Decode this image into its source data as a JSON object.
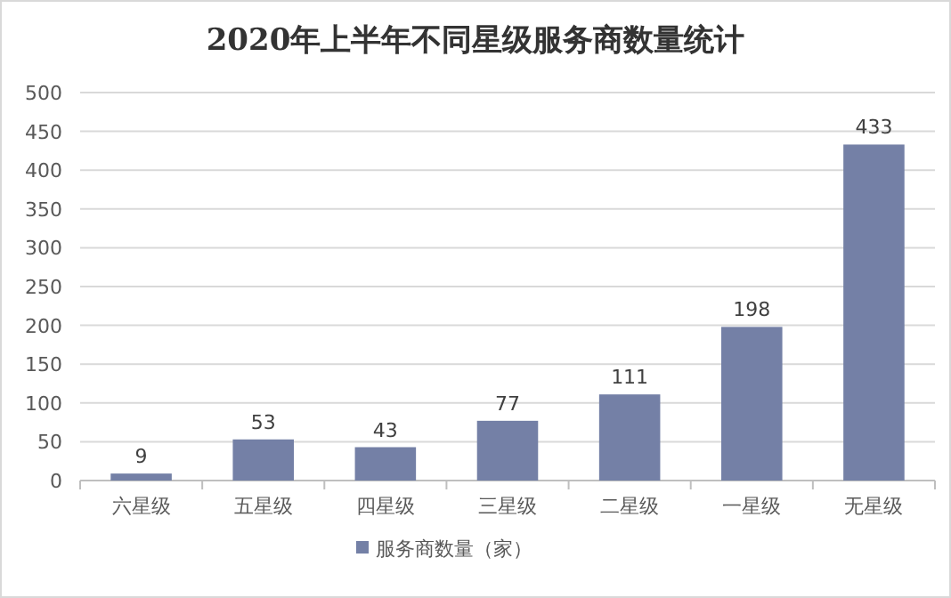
{
  "chart_data": {
    "type": "bar",
    "title": "2020年上半年不同星级服务商数量统计",
    "categories": [
      "六星级",
      "五星级",
      "四星级",
      "三星级",
      "二星级",
      "一星级",
      "无星级"
    ],
    "series": [
      {
        "name": "服务商数量（家）",
        "color": "#7480a6",
        "values": [
          9,
          53,
          43,
          77,
          111,
          198,
          433
        ]
      }
    ],
    "ylim": [
      0,
      500
    ],
    "yticks": [
      0,
      50,
      100,
      150,
      200,
      250,
      300,
      350,
      400,
      450,
      500
    ],
    "grid": "y",
    "legend": "bottom",
    "data_labels": true
  }
}
